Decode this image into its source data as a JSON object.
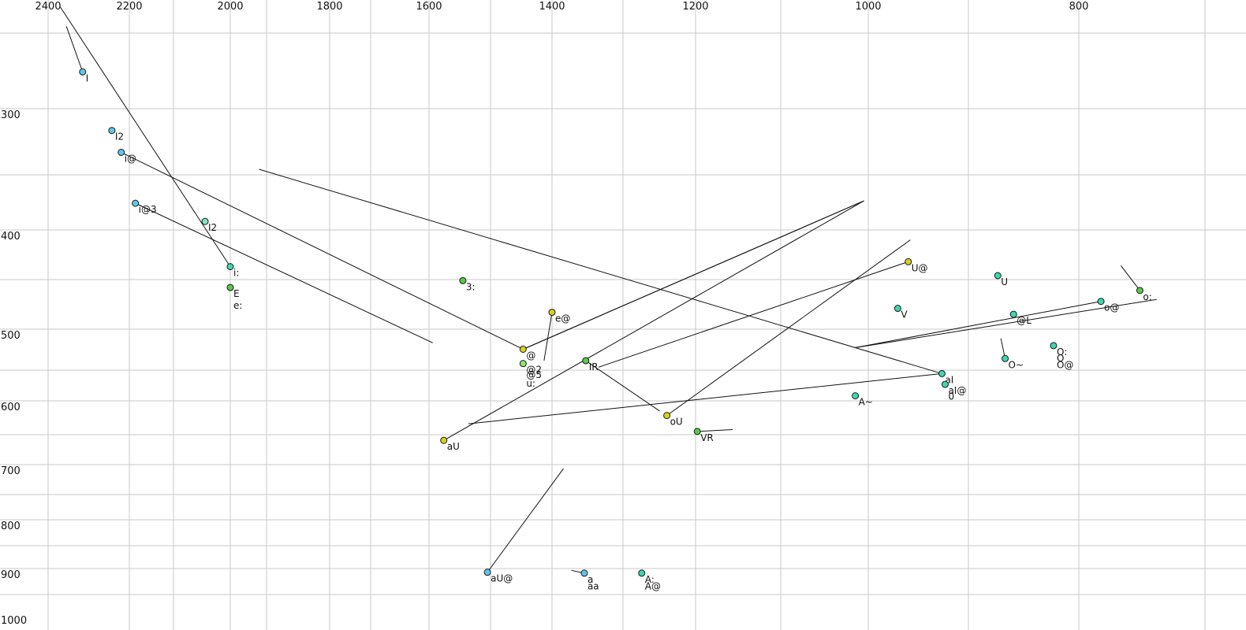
{
  "chart_data": {
    "type": "scatter",
    "title": "",
    "xlabel": "",
    "ylabel": "",
    "x_axis_reversed": true,
    "y_axis_nonlinear": true,
    "grid": true,
    "xlim": [
      2400,
      700
    ],
    "ylim": [
      200,
      1000
    ],
    "x_ticks": [
      {
        "value": 2400,
        "label": "2400"
      },
      {
        "value": 2200,
        "label": "2200"
      },
      {
        "value": 2000,
        "label": "2000"
      },
      {
        "value": 1800,
        "label": "1800"
      },
      {
        "value": 1600,
        "label": "1600"
      },
      {
        "value": 1400,
        "label": "1400"
      },
      {
        "value": 1200,
        "label": "1200"
      },
      {
        "value": 1000,
        "label": "1000"
      },
      {
        "value": 800,
        "label": "800"
      }
    ],
    "y_ticks": [
      {
        "value": 300,
        "label": "300"
      },
      {
        "value": 400,
        "label": "400"
      },
      {
        "value": 500,
        "label": "500"
      },
      {
        "value": 600,
        "label": "600"
      },
      {
        "value": 700,
        "label": "700"
      },
      {
        "value": 800,
        "label": "800"
      },
      {
        "value": 900,
        "label": "900"
      },
      {
        "value": 1000,
        "label": "1000"
      }
    ],
    "colors": {
      "cyan": "#5fc8e8",
      "teal": "#3ed6b0",
      "green": "#55cc44",
      "lightgreen": "#8ee86a",
      "yellow": "#d8d020",
      "lightcyan": "#80e8c0"
    },
    "points": [
      {
        "label": "I",
        "f2": 2315,
        "f1": 262,
        "color": "cyan",
        "trajectory": [
          [
            2355,
            215
          ]
        ]
      },
      {
        "label": "I2",
        "f2": 2243,
        "f1": 318,
        "color": "cyan"
      },
      {
        "label": "i@",
        "f2": 2220,
        "f1": 336,
        "color": "cyan",
        "trajectory": [
          [
            1447,
            528
          ]
        ]
      },
      {
        "label": "i@3",
        "f2": 2188,
        "f1": 378,
        "color": "cyan",
        "trajectory": [
          [
            1594,
            519
          ]
        ]
      },
      {
        "label": "I2",
        "f2": 2050,
        "f1": 393,
        "color": "lightcyan",
        "label_color": "#6e7aa8"
      },
      {
        "label": "i:",
        "f2": 2000,
        "f1": 437,
        "color": "teal",
        "trajectory": [
          [
            2370,
            195
          ]
        ]
      },
      {
        "label": "E",
        "f2": 2000,
        "f1": 458,
        "color": "green"
      },
      {
        "label": "e:",
        "f2": 2000,
        "f1": 470,
        "color": "none"
      },
      {
        "label": "3:",
        "f2": 1545,
        "f1": 451,
        "color": "green"
      },
      {
        "label": "e@",
        "f2": 1400,
        "f1": 483,
        "color": "yellow",
        "trajectory": [
          [
            1413,
            544
          ]
        ]
      },
      {
        "label": "@",
        "f2": 1447,
        "f1": 528,
        "color": "yellow",
        "trajectory": [
          [
            1005,
            376
          ]
        ]
      },
      {
        "label": "@2",
        "f2": 1447,
        "f1": 548,
        "color": "lightgreen"
      },
      {
        "label": "@5",
        "f2": 1447,
        "f1": 555,
        "color": "none"
      },
      {
        "label": "u:",
        "f2": 1447,
        "f1": 567,
        "color": "none"
      },
      {
        "label": "IR",
        "f2": 1353,
        "f1": 544,
        "color": "green",
        "trajectory": [
          [
            1250,
            616
          ]
        ]
      },
      {
        "label": "oU",
        "f2": 1240,
        "f1": 623,
        "color": "yellow",
        "trajectory": [
          [
            960,
            410
          ]
        ]
      },
      {
        "label": "VR",
        "f2": 1198,
        "f1": 648,
        "color": "green",
        "trajectory": [
          [
            1157,
            645
          ]
        ]
      },
      {
        "label": "aU",
        "f2": 1576,
        "f1": 662,
        "color": "yellow",
        "trajectory": [
          [
            1005,
            376
          ]
        ]
      },
      {
        "label": "aU@",
        "f2": 1505,
        "f1": 908,
        "color": "cyan",
        "trajectory": [
          [
            1384,
            707
          ]
        ]
      },
      {
        "label": "a",
        "f2": 1355,
        "f1": 910,
        "color": "cyan",
        "trajectory": [
          [
            1373,
            904
          ]
        ]
      },
      {
        "label": "aa",
        "f2": 1355,
        "f1": 925,
        "color": "none"
      },
      {
        "label": "A:",
        "f2": 1275,
        "f1": 910,
        "color": "teal"
      },
      {
        "label": "A@",
        "f2": 1275,
        "f1": 925,
        "color": "none"
      },
      {
        "label": "U@",
        "f2": 962,
        "f1": 432,
        "color": "yellow",
        "trajectory": [
          [
            1335,
            553
          ]
        ]
      },
      {
        "label": "U",
        "f2": 877,
        "f1": 446,
        "color": "teal"
      },
      {
        "label": "V",
        "f2": 972,
        "f1": 479,
        "color": "teal"
      },
      {
        "label": "@L",
        "f2": 862,
        "f1": 485,
        "color": "teal"
      },
      {
        "label": "o@",
        "f2": 779,
        "f1": 472,
        "color": "teal",
        "trajectory": [
          [
            1016,
            526
          ]
        ]
      },
      {
        "label": "o:",
        "f2": 742,
        "f1": 461,
        "color": "green",
        "trajectory": [
          [
            760,
            436
          ]
        ]
      },
      {
        "label": "O:",
        "f2": 824,
        "f1": 523,
        "color": "teal"
      },
      {
        "label": "O",
        "f2": 824,
        "f1": 532,
        "color": "none"
      },
      {
        "label": "O@",
        "f2": 824,
        "f1": 541,
        "color": "none"
      },
      {
        "label": "O~",
        "f2": 870,
        "f1": 541,
        "color": "teal",
        "trajectory": [
          [
            874,
            513
          ]
        ]
      },
      {
        "label": "aI",
        "f2": 930,
        "f1": 562,
        "color": "teal",
        "trajectory": [
          [
            1536,
            636
          ]
        ]
      },
      {
        "label": "aI@",
        "f2": 927,
        "f1": 577,
        "color": "teal"
      },
      {
        "label": "0",
        "f2": 927,
        "f1": 585,
        "color": "none"
      },
      {
        "label": "A~",
        "f2": 1015,
        "f1": 593,
        "color": "teal"
      }
    ],
    "extra_segments": [
      [
        [
          1942,
          350
        ],
        [
          930,
          562
        ]
      ],
      [
        [
          1447,
          528
        ],
        [
          1005,
          376
        ]
      ],
      [
        [
          726,
          470
        ],
        [
          1016,
          526
        ]
      ]
    ]
  }
}
